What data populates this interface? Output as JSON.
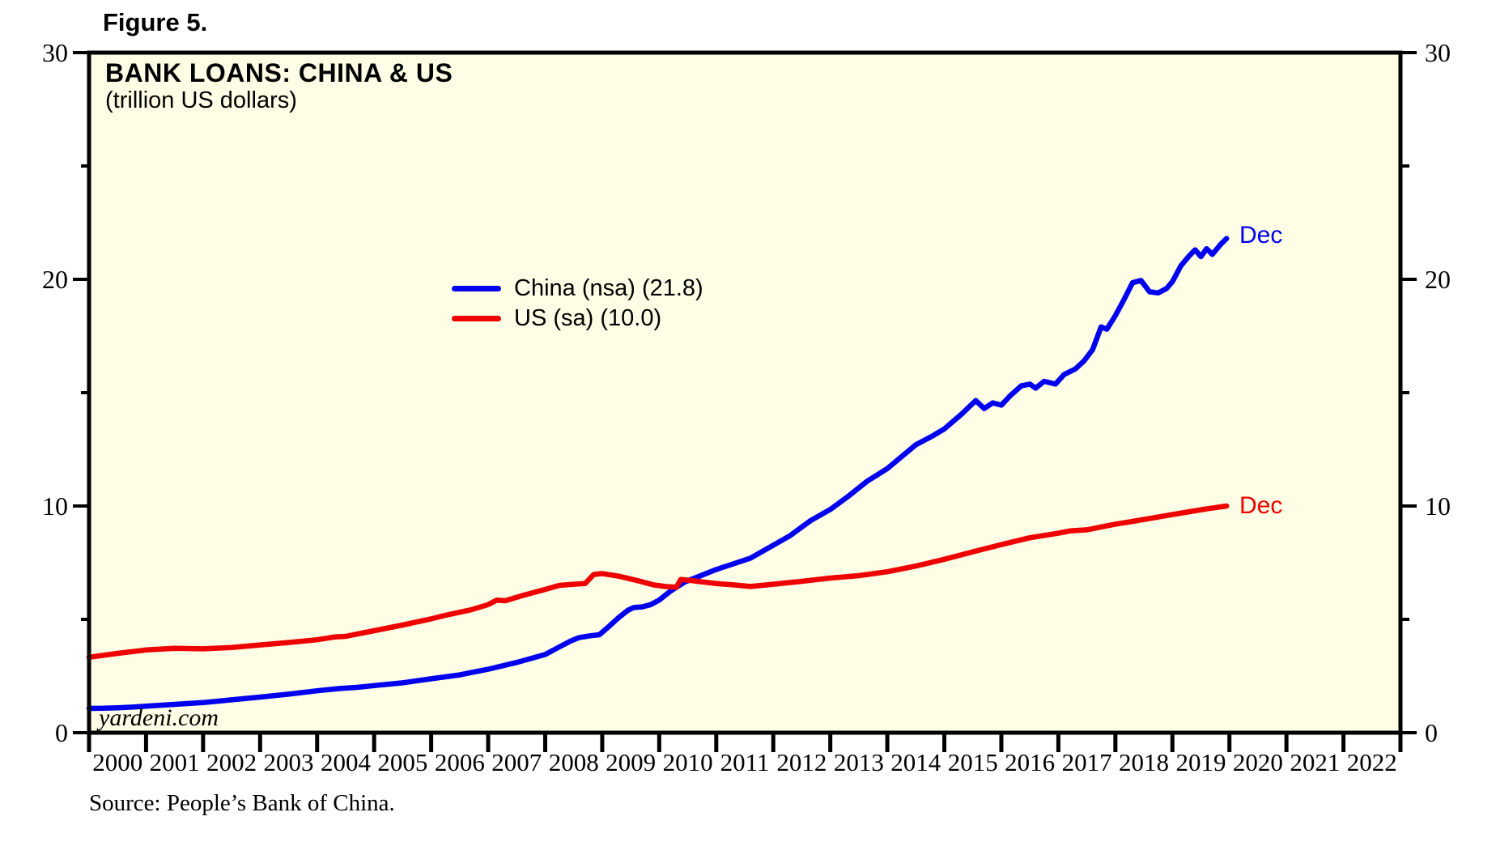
{
  "figure_label": "Figure 5.",
  "title": "BANK LOANS: CHINA & US",
  "subtitle": "(trillion US dollars)",
  "watermark": "yardeni.com",
  "source": "Source: People’s Bank of China.",
  "colors": {
    "plot_background": "#FEFDE5",
    "china_line": "#0000EE",
    "us_line": "#EE0000",
    "axis": "#000000"
  },
  "legend": [
    {
      "label": "China (nsa) (21.8)",
      "color": "#0000EE"
    },
    {
      "label": "US (sa) (10.0)",
      "color": "#EE0000"
    }
  ],
  "annotations": [
    {
      "text": "Dec",
      "series": "China (nsa)",
      "color": "#0000EE"
    },
    {
      "text": "Dec",
      "series": "US (sa)",
      "color": "#EE0000"
    }
  ],
  "chart_data": {
    "type": "line",
    "title": "BANK LOANS: CHINA & US",
    "subtitle": "(trillion US dollars)",
    "xlabel": "",
    "ylabel": "trillion US dollars",
    "ylim": [
      0,
      30
    ],
    "y_ticks_major": [
      0,
      10,
      20,
      30
    ],
    "y_ticks_minor": [
      5,
      15,
      25
    ],
    "dual_axis": true,
    "grid": false,
    "legend_position": "upper-left-inside",
    "x_years": [
      "2000",
      "2001",
      "2002",
      "2003",
      "2004",
      "2005",
      "2006",
      "2007",
      "2008",
      "2009",
      "2010",
      "2011",
      "2012",
      "2013",
      "2014",
      "2015",
      "2016",
      "2017",
      "2018",
      "2019",
      "2020",
      "2021",
      "2022"
    ],
    "x_range_note": "data plotted Jan 2000 through Dec 2019",
    "series": [
      {
        "name": "China (nsa)",
        "latest_label": "Dec",
        "latest_value": 21.8,
        "color": "#0000EE",
        "points": [
          [
            2000.0,
            1.07
          ],
          [
            2000.25,
            1.08
          ],
          [
            2000.5,
            1.1
          ],
          [
            2000.75,
            1.13
          ],
          [
            2001.0,
            1.17
          ],
          [
            2001.5,
            1.25
          ],
          [
            2002.0,
            1.33
          ],
          [
            2002.5,
            1.45
          ],
          [
            2003.0,
            1.57
          ],
          [
            2003.5,
            1.7
          ],
          [
            2004.0,
            1.85
          ],
          [
            2004.4,
            1.95
          ],
          [
            2004.7,
            2.0
          ],
          [
            2005.0,
            2.08
          ],
          [
            2005.5,
            2.2
          ],
          [
            2006.0,
            2.38
          ],
          [
            2006.5,
            2.55
          ],
          [
            2007.0,
            2.8
          ],
          [
            2007.5,
            3.1
          ],
          [
            2008.0,
            3.45
          ],
          [
            2008.2,
            3.72
          ],
          [
            2008.45,
            4.05
          ],
          [
            2008.6,
            4.2
          ],
          [
            2008.8,
            4.28
          ],
          [
            2008.95,
            4.32
          ],
          [
            2009.1,
            4.65
          ],
          [
            2009.3,
            5.1
          ],
          [
            2009.45,
            5.4
          ],
          [
            2009.55,
            5.52
          ],
          [
            2009.7,
            5.55
          ],
          [
            2009.85,
            5.65
          ],
          [
            2010.0,
            5.85
          ],
          [
            2010.2,
            6.25
          ],
          [
            2010.45,
            6.65
          ],
          [
            2010.7,
            6.9
          ],
          [
            2011.0,
            7.2
          ],
          [
            2011.3,
            7.45
          ],
          [
            2011.6,
            7.7
          ],
          [
            2011.95,
            8.2
          ],
          [
            2012.3,
            8.7
          ],
          [
            2012.65,
            9.35
          ],
          [
            2013.0,
            9.85
          ],
          [
            2013.3,
            10.4
          ],
          [
            2013.65,
            11.1
          ],
          [
            2014.0,
            11.65
          ],
          [
            2014.5,
            12.7
          ],
          [
            2014.8,
            13.1
          ],
          [
            2015.0,
            13.4
          ],
          [
            2015.3,
            14.05
          ],
          [
            2015.55,
            14.65
          ],
          [
            2015.7,
            14.3
          ],
          [
            2015.85,
            14.55
          ],
          [
            2016.0,
            14.45
          ],
          [
            2016.15,
            14.85
          ],
          [
            2016.35,
            15.3
          ],
          [
            2016.5,
            15.38
          ],
          [
            2016.6,
            15.2
          ],
          [
            2016.75,
            15.5
          ],
          [
            2016.95,
            15.38
          ],
          [
            2017.1,
            15.8
          ],
          [
            2017.3,
            16.05
          ],
          [
            2017.45,
            16.4
          ],
          [
            2017.6,
            16.9
          ],
          [
            2017.75,
            17.9
          ],
          [
            2017.85,
            17.8
          ],
          [
            2018.0,
            18.4
          ],
          [
            2018.15,
            19.1
          ],
          [
            2018.3,
            19.85
          ],
          [
            2018.45,
            19.95
          ],
          [
            2018.6,
            19.45
          ],
          [
            2018.75,
            19.4
          ],
          [
            2018.9,
            19.6
          ],
          [
            2019.0,
            19.9
          ],
          [
            2019.15,
            20.6
          ],
          [
            2019.3,
            21.05
          ],
          [
            2019.4,
            21.3
          ],
          [
            2019.5,
            21.0
          ],
          [
            2019.6,
            21.35
          ],
          [
            2019.7,
            21.1
          ],
          [
            2019.85,
            21.55
          ],
          [
            2019.95,
            21.8
          ]
        ]
      },
      {
        "name": "US (sa)",
        "latest_label": "Dec",
        "latest_value": 10.0,
        "color": "#EE0000",
        "points": [
          [
            2000.0,
            3.33
          ],
          [
            2000.5,
            3.5
          ],
          [
            2001.0,
            3.65
          ],
          [
            2001.5,
            3.72
          ],
          [
            2002.0,
            3.7
          ],
          [
            2002.5,
            3.76
          ],
          [
            2003.0,
            3.87
          ],
          [
            2003.5,
            3.98
          ],
          [
            2004.0,
            4.1
          ],
          [
            2004.3,
            4.22
          ],
          [
            2004.5,
            4.25
          ],
          [
            2004.7,
            4.35
          ],
          [
            2005.0,
            4.5
          ],
          [
            2005.5,
            4.75
          ],
          [
            2006.0,
            5.02
          ],
          [
            2006.25,
            5.18
          ],
          [
            2006.7,
            5.42
          ],
          [
            2007.0,
            5.65
          ],
          [
            2007.15,
            5.85
          ],
          [
            2007.3,
            5.82
          ],
          [
            2007.6,
            6.05
          ],
          [
            2008.0,
            6.32
          ],
          [
            2008.25,
            6.5
          ],
          [
            2008.5,
            6.55
          ],
          [
            2008.7,
            6.58
          ],
          [
            2008.85,
            6.98
          ],
          [
            2009.0,
            7.02
          ],
          [
            2009.3,
            6.9
          ],
          [
            2009.6,
            6.72
          ],
          [
            2009.9,
            6.52
          ],
          [
            2010.1,
            6.45
          ],
          [
            2010.3,
            6.42
          ],
          [
            2010.38,
            6.76
          ],
          [
            2010.6,
            6.7
          ],
          [
            2011.0,
            6.58
          ],
          [
            2011.3,
            6.52
          ],
          [
            2011.6,
            6.45
          ],
          [
            2012.0,
            6.55
          ],
          [
            2012.5,
            6.68
          ],
          [
            2013.0,
            6.82
          ],
          [
            2013.5,
            6.93
          ],
          [
            2014.0,
            7.1
          ],
          [
            2014.5,
            7.35
          ],
          [
            2015.0,
            7.65
          ],
          [
            2015.5,
            7.98
          ],
          [
            2016.0,
            8.3
          ],
          [
            2016.5,
            8.6
          ],
          [
            2017.0,
            8.8
          ],
          [
            2017.2,
            8.9
          ],
          [
            2017.5,
            8.95
          ],
          [
            2017.8,
            9.1
          ],
          [
            2018.0,
            9.2
          ],
          [
            2018.3,
            9.32
          ],
          [
            2018.6,
            9.45
          ],
          [
            2019.0,
            9.62
          ],
          [
            2019.3,
            9.75
          ],
          [
            2019.6,
            9.87
          ],
          [
            2019.95,
            10.0
          ]
        ]
      }
    ]
  }
}
